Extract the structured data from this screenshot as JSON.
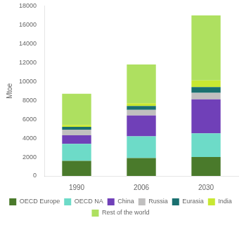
{
  "chart_data": {
    "type": "bar",
    "categories": [
      "1990",
      "2006",
      "2030"
    ],
    "series": [
      {
        "name": "OECD Europe",
        "color": "#4a7a2b",
        "values": [
          1600,
          1900,
          2000
        ]
      },
      {
        "name": "OECD NA",
        "color": "#6ddbc8",
        "values": [
          1800,
          2300,
          2500
        ]
      },
      {
        "name": "China",
        "color": "#7040b8",
        "values": [
          900,
          2200,
          3600
        ]
      },
      {
        "name": "Russia",
        "color": "#c0bfbf",
        "values": [
          600,
          600,
          700
        ]
      },
      {
        "name": "Eurasia",
        "color": "#1a7070",
        "values": [
          300,
          400,
          600
        ]
      },
      {
        "name": "India",
        "color": "#c8e832",
        "values": [
          200,
          300,
          700
        ]
      },
      {
        "name": "Rest of the world",
        "color": "#aee060",
        "values": [
          3300,
          4100,
          6900
        ]
      }
    ],
    "ylabel": "Mtoe",
    "ylim": [
      0,
      18000
    ],
    "yticks": [
      0,
      2000,
      4000,
      6000,
      8000,
      10000,
      12000,
      14000,
      16000,
      18000
    ],
    "stacked": true,
    "grid": false,
    "legend": "bottom"
  }
}
